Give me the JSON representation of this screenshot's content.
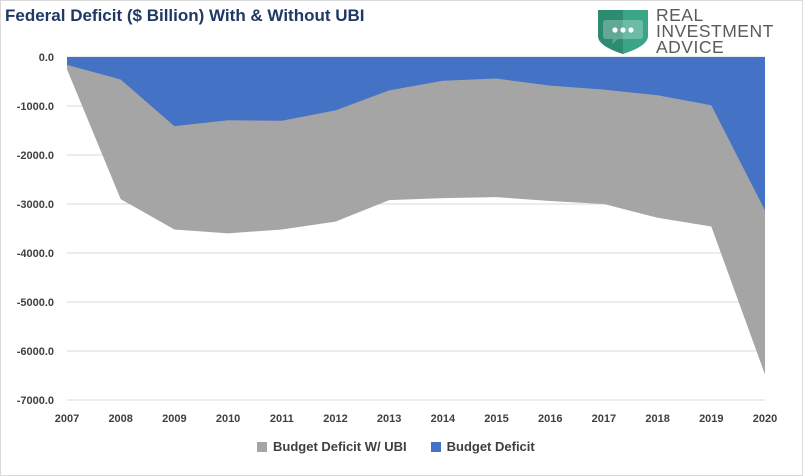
{
  "chart_data": {
    "type": "area",
    "title": "Federal Deficit ($ Billion) With & Without UBI",
    "x": [
      "2007",
      "2008",
      "2009",
      "2010",
      "2011",
      "2012",
      "2013",
      "2014",
      "2015",
      "2016",
      "2017",
      "2018",
      "2019",
      "2020"
    ],
    "series": [
      {
        "name": "Budget Deficit W/ UBI",
        "color": "#a5a5a5",
        "values": [
          -250,
          -2900,
          -3520,
          -3600,
          -3520,
          -3360,
          -2920,
          -2880,
          -2860,
          -2940,
          -3000,
          -3280,
          -3460,
          -6480
        ]
      },
      {
        "name": "Budget Deficit",
        "color": "#4472c4",
        "values": [
          -160,
          -460,
          -1410,
          -1290,
          -1300,
          -1090,
          -680,
          -485,
          -440,
          -585,
          -665,
          -780,
          -985,
          -3130
        ]
      }
    ],
    "yticks": [
      "0.0",
      "-1000.0",
      "-2000.0",
      "-3000.0",
      "-4000.0",
      "-5000.0",
      "-6000.0",
      "-7000.0"
    ],
    "ylim": [
      -7000,
      0
    ],
    "grid": true,
    "legend_position": "bottom"
  },
  "logo": {
    "line1": "REAL",
    "line2": "INVESTMENT",
    "line3": "ADVICE"
  }
}
